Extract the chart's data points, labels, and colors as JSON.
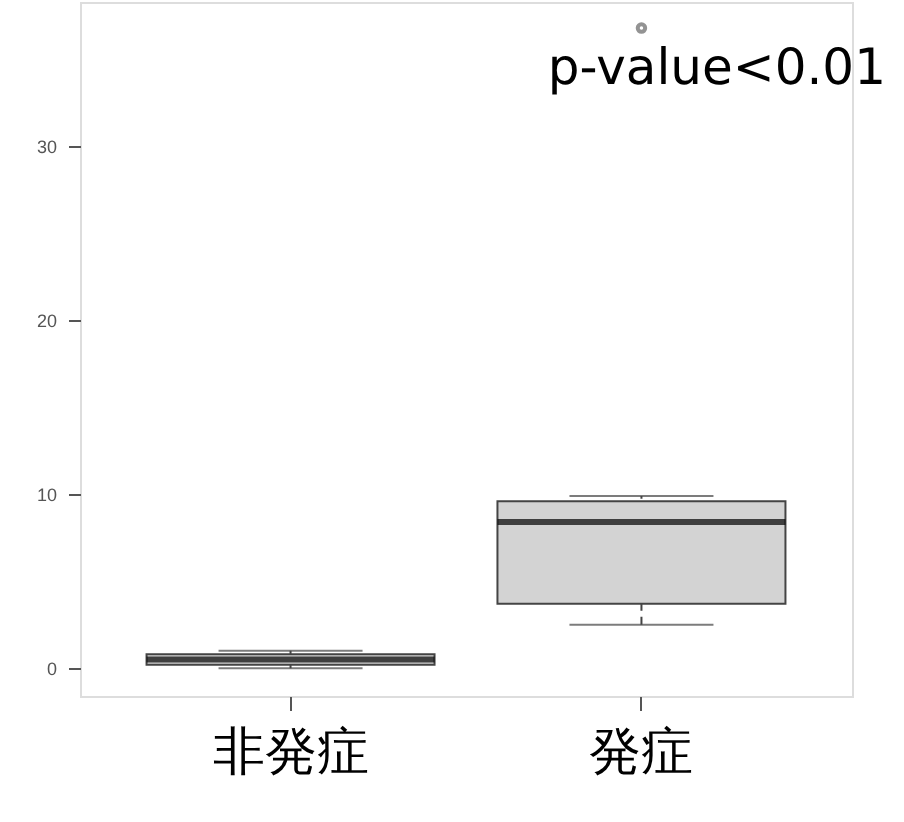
{
  "chart_data": {
    "type": "box",
    "categories": [
      "非発症",
      "発症"
    ],
    "boxes": [
      {
        "low": 0.0,
        "q1": 0.2,
        "median": 0.5,
        "q3": 0.8,
        "high": 1.0
      },
      {
        "low": 2.5,
        "q1": 3.7,
        "median": 8.4,
        "q3": 9.6,
        "high": 9.9,
        "outliers": [
          36.8
        ]
      }
    ],
    "color": "#d3d3d3",
    "ylim": [
      -1.6,
      38.3
    ],
    "yticks": [
      0,
      10,
      20,
      30
    ],
    "grid": false,
    "annotations": [
      "p-value<0.01"
    ]
  }
}
